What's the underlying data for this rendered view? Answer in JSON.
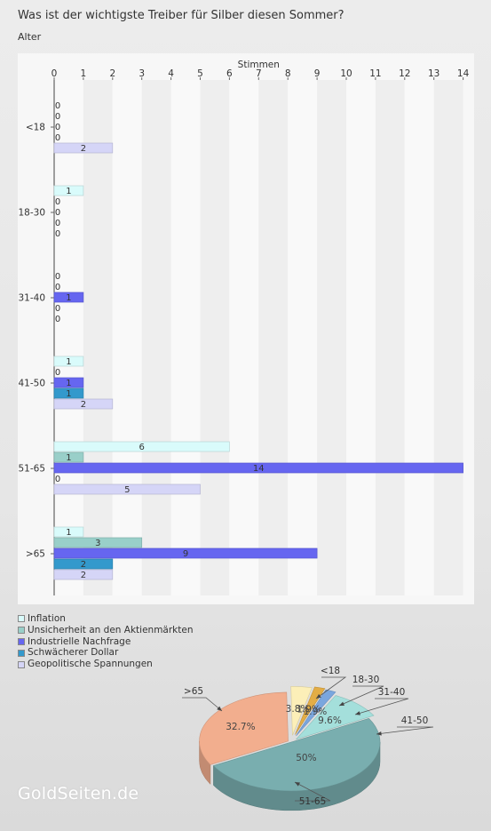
{
  "header": {
    "title": "Was ist der wichtigste Treiber für Silber diesen Sommer?",
    "subtitle": "Alter"
  },
  "chart_data": [
    {
      "type": "bar",
      "orientation": "horizontal",
      "xlabel": "Stimmen",
      "xlim": [
        0,
        14
      ],
      "x_ticks": [
        "0",
        "1",
        "2",
        "3",
        "4",
        "5",
        "6",
        "7",
        "8",
        "9",
        "10",
        "11",
        "12",
        "13",
        "14"
      ],
      "categories": [
        "<18",
        "18-30",
        "31-40",
        "41-50",
        "51-65",
        ">65"
      ],
      "series": [
        {
          "name": "Inflation",
          "color": "#d9fbfb",
          "values": [
            0,
            1,
            0,
            1,
            6,
            1
          ]
        },
        {
          "name": "Unsicherheit an den Aktienmärkten",
          "color": "#99cfc9",
          "values": [
            0,
            0,
            0,
            0,
            1,
            3
          ]
        },
        {
          "name": "Industrielle Nachfrage",
          "color": "#6666f0",
          "values": [
            0,
            0,
            1,
            1,
            14,
            9
          ]
        },
        {
          "name": "Schwächerer Dollar",
          "color": "#3399cc",
          "values": [
            0,
            0,
            0,
            1,
            0,
            2
          ]
        },
        {
          "name": "Geopolitische Spannungen",
          "color": "#d5d5f7",
          "values": [
            2,
            0,
            0,
            2,
            5,
            2
          ]
        }
      ],
      "legend": "bottom-left"
    },
    {
      "type": "pie",
      "labels": [
        "<18",
        "18-30",
        "31-40",
        "41-50",
        "51-65",
        ">65"
      ],
      "values": [
        3.8,
        1.9,
        1.9,
        9.6,
        50,
        32.7
      ],
      "value_labels": [
        "3.8%",
        "1.9%",
        "1.9%",
        "9.6%",
        "50%",
        "32.7%"
      ],
      "colors": [
        "#fcefb8",
        "#e3ad45",
        "#7aa6de",
        "#a4dfdb",
        "#79aeaf",
        "#f2ae8e"
      ]
    }
  ],
  "footer": {
    "logo_text": "GoldSeiten.de"
  }
}
